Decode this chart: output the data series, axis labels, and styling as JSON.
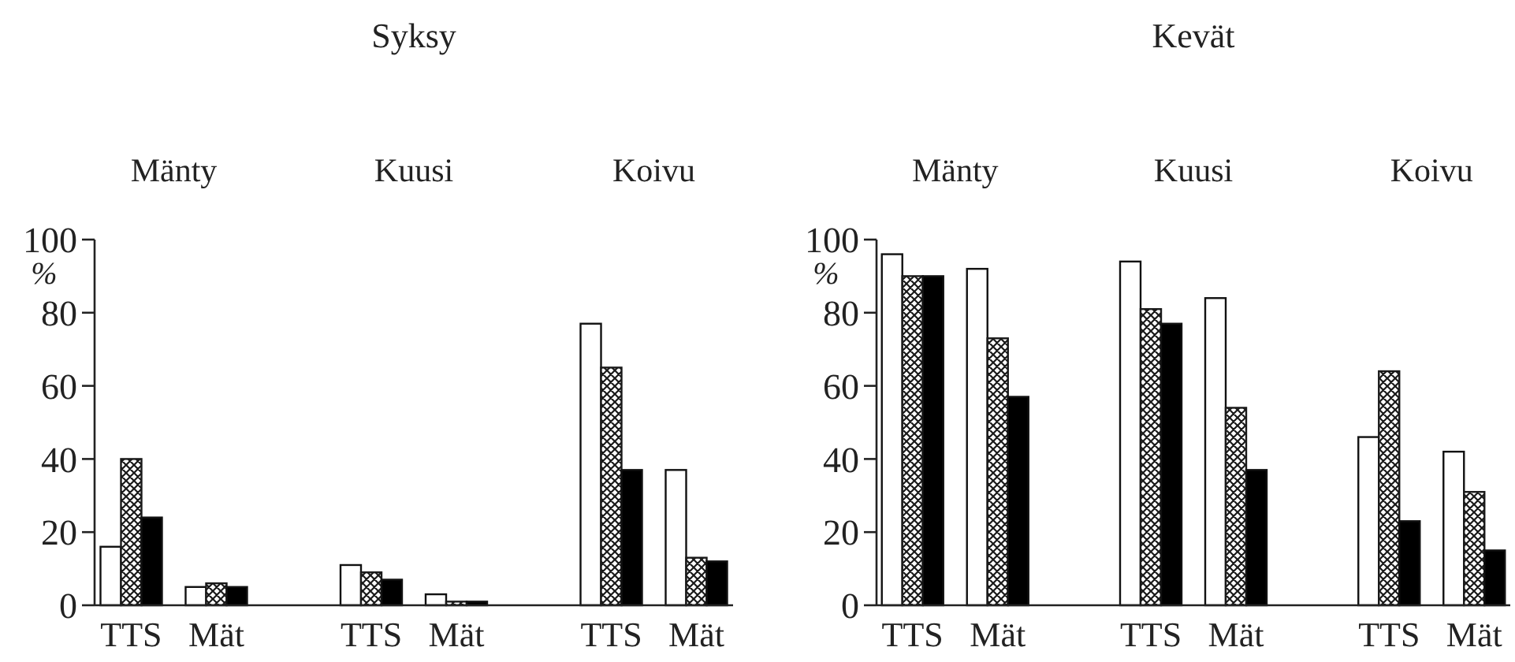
{
  "chart_data": [
    {
      "type": "bar",
      "title": "Syksy",
      "ylabel": "%",
      "categories": [
        "TTS",
        "Mät",
        "TTS",
        "Mät",
        "TTS",
        "Mät"
      ],
      "series": [
        {
          "color": "#ffffff",
          "values": [
            16,
            5,
            11,
            3,
            77,
            37
          ]
        },
        {
          "color": "#1a1a1a",
          "values": [
            40,
            6,
            9,
            1,
            65,
            13
          ]
        },
        {
          "color": "#000000",
          "values": [
            24,
            5,
            7,
            1,
            37,
            12
          ]
        }
      ],
      "ylim": [
        0,
        100
      ],
      "yticks": [
        0,
        20,
        40,
        60,
        80,
        100
      ],
      "annotations": [
        "Mänty",
        "Kuusi",
        "Koivu"
      ]
    },
    {
      "type": "bar",
      "title": "Kevät",
      "ylabel": "%",
      "categories": [
        "TTS",
        "Mät",
        "TTS",
        "Mät",
        "TTS",
        "Mät"
      ],
      "series": [
        {
          "color": "#ffffff",
          "values": [
            96,
            92,
            94,
            84,
            46,
            42
          ]
        },
        {
          "color": "#1a1a1a",
          "values": [
            90,
            73,
            81,
            54,
            64,
            31
          ]
        },
        {
          "color": "#000000",
          "values": [
            90,
            57,
            77,
            37,
            23,
            15
          ]
        }
      ],
      "ylim": [
        0,
        100
      ],
      "yticks": [
        0,
        20,
        40,
        60,
        80,
        100
      ],
      "annotations": [
        "Mänty",
        "Kuusi",
        "Koivu"
      ]
    }
  ]
}
